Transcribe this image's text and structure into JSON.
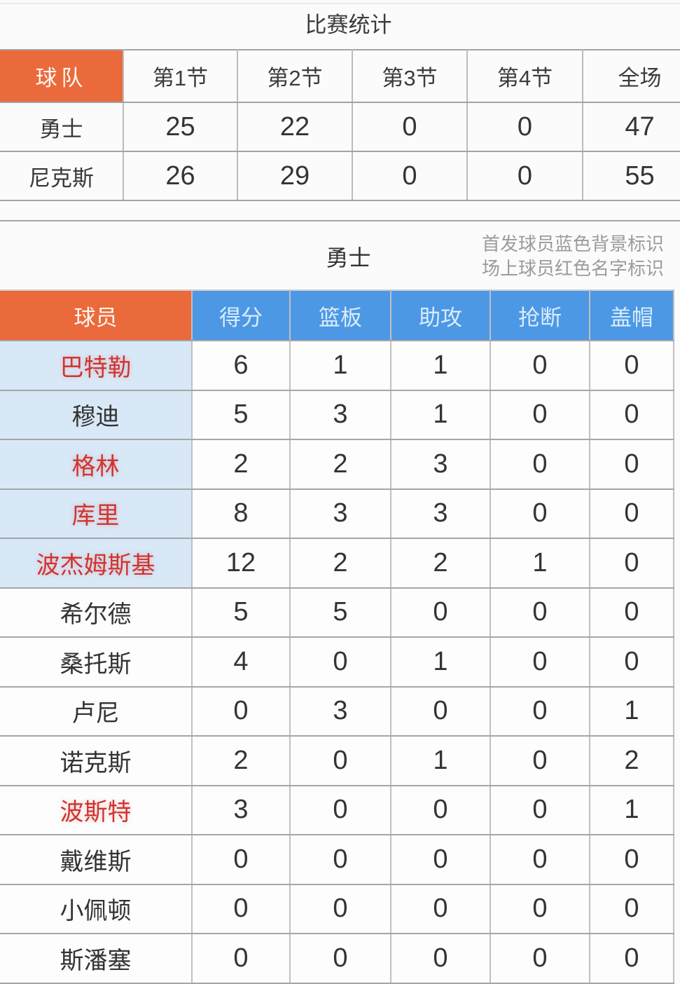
{
  "page": {
    "title": "比赛统计",
    "section_title": "勇士",
    "legend_line1": "首发球员蓝色背景标识",
    "legend_line2": "场上球员红色名字标识"
  },
  "colors": {
    "accent_orange": "#ea6a3b",
    "header_blue": "#4d98e5",
    "starter_row_blue": "#d8e8f7",
    "on_court_red": "#d0342f"
  },
  "score_table": {
    "headers": [
      "球队",
      "第1节",
      "第2节",
      "第3节",
      "第4节",
      "全场"
    ],
    "rows": [
      {
        "team": "勇士",
        "q1": "25",
        "q2": "22",
        "q3": "0",
        "q4": "0",
        "total": "47"
      },
      {
        "team": "尼克斯",
        "q1": "26",
        "q2": "29",
        "q3": "0",
        "q4": "0",
        "total": "55"
      }
    ]
  },
  "player_table": {
    "headers": [
      "球员",
      "得分",
      "篮板",
      "助攻",
      "抢断",
      "盖帽"
    ],
    "rows": [
      {
        "name": "巴特勒",
        "starter": true,
        "on_court": true,
        "points": "6",
        "rebounds": "1",
        "assists": "1",
        "steals": "0",
        "blocks": "0"
      },
      {
        "name": "穆迪",
        "starter": true,
        "on_court": false,
        "points": "5",
        "rebounds": "3",
        "assists": "1",
        "steals": "0",
        "blocks": "0"
      },
      {
        "name": "格林",
        "starter": true,
        "on_court": true,
        "points": "2",
        "rebounds": "2",
        "assists": "3",
        "steals": "0",
        "blocks": "0"
      },
      {
        "name": "库里",
        "starter": true,
        "on_court": true,
        "points": "8",
        "rebounds": "3",
        "assists": "3",
        "steals": "0",
        "blocks": "0"
      },
      {
        "name": "波杰姆斯基",
        "starter": true,
        "on_court": true,
        "points": "12",
        "rebounds": "2",
        "assists": "2",
        "steals": "1",
        "blocks": "0"
      },
      {
        "name": "希尔德",
        "starter": false,
        "on_court": false,
        "points": "5",
        "rebounds": "5",
        "assists": "0",
        "steals": "0",
        "blocks": "0"
      },
      {
        "name": "桑托斯",
        "starter": false,
        "on_court": false,
        "points": "4",
        "rebounds": "0",
        "assists": "1",
        "steals": "0",
        "blocks": "0"
      },
      {
        "name": "卢尼",
        "starter": false,
        "on_court": false,
        "points": "0",
        "rebounds": "3",
        "assists": "0",
        "steals": "0",
        "blocks": "1"
      },
      {
        "name": "诺克斯",
        "starter": false,
        "on_court": false,
        "points": "2",
        "rebounds": "0",
        "assists": "1",
        "steals": "0",
        "blocks": "2"
      },
      {
        "name": "波斯特",
        "starter": false,
        "on_court": true,
        "points": "3",
        "rebounds": "0",
        "assists": "0",
        "steals": "0",
        "blocks": "1"
      },
      {
        "name": "戴维斯",
        "starter": false,
        "on_court": false,
        "points": "0",
        "rebounds": "0",
        "assists": "0",
        "steals": "0",
        "blocks": "0"
      },
      {
        "name": "小佩顿",
        "starter": false,
        "on_court": false,
        "points": "0",
        "rebounds": "0",
        "assists": "0",
        "steals": "0",
        "blocks": "0"
      },
      {
        "name": "斯潘塞",
        "starter": false,
        "on_court": false,
        "points": "0",
        "rebounds": "0",
        "assists": "0",
        "steals": "0",
        "blocks": "0"
      }
    ]
  }
}
